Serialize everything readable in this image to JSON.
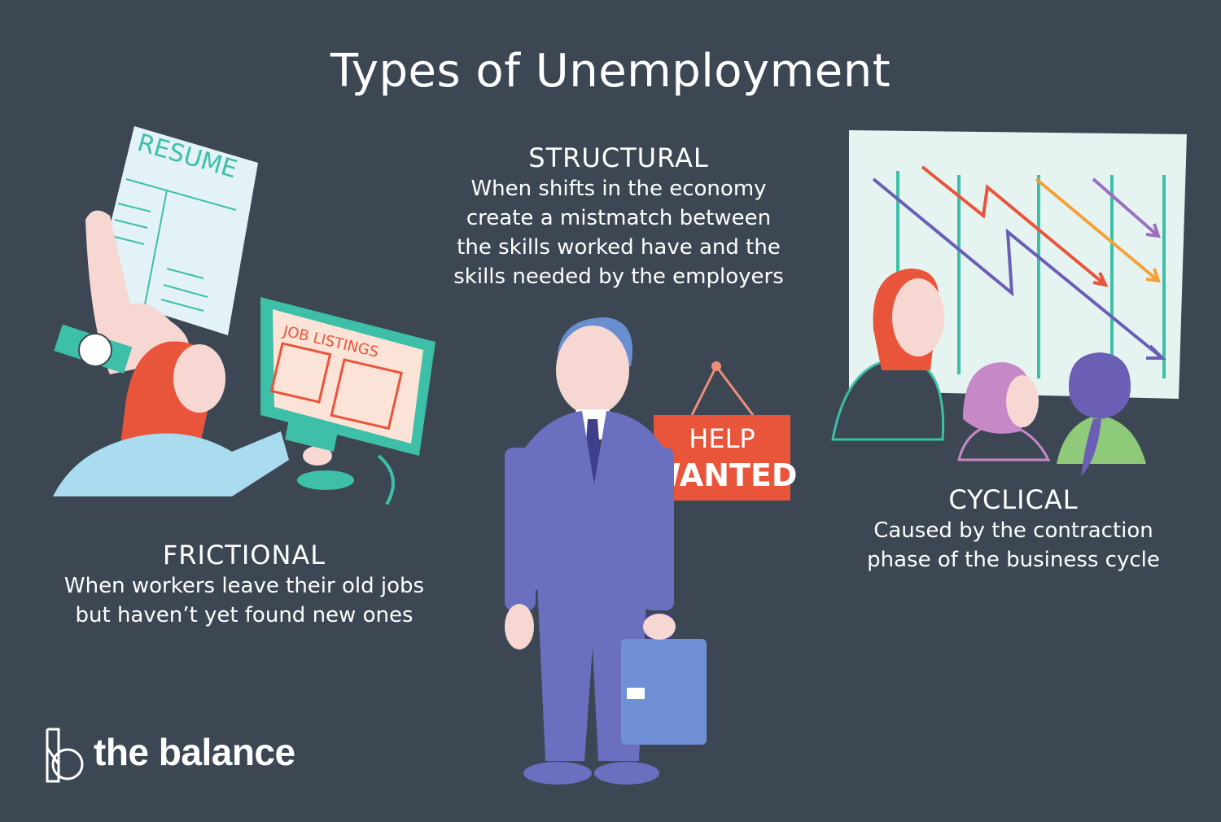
{
  "title": "Types of Unemployment",
  "frictional": {
    "heading": "FRICTIONAL",
    "line1": "When workers leave their old jobs",
    "line2": "but haven’t yet found new ones"
  },
  "structural": {
    "heading": "STRUCTURAL",
    "line1": "When shifts in the economy",
    "line2": "create a mistmatch between",
    "line3": "the skills worked have and the",
    "line4": "skills needed by the employers"
  },
  "cyclical": {
    "heading": "CYCLICAL",
    "line1": "Caused by the contraction",
    "line2": "phase of the business cycle"
  },
  "illustration_text": {
    "resume": "RESUME",
    "job_listings": "JOB LISTINGS",
    "help": "HELP",
    "wanted": "WANTED"
  },
  "brand": {
    "name": "the balance"
  },
  "colors": {
    "background": "#3c4753",
    "teal": "#3dbfa8",
    "red": "#e8553a",
    "suit": "#6a6fc0",
    "purple": "#6b5fb5",
    "orange": "#f3a13a"
  }
}
